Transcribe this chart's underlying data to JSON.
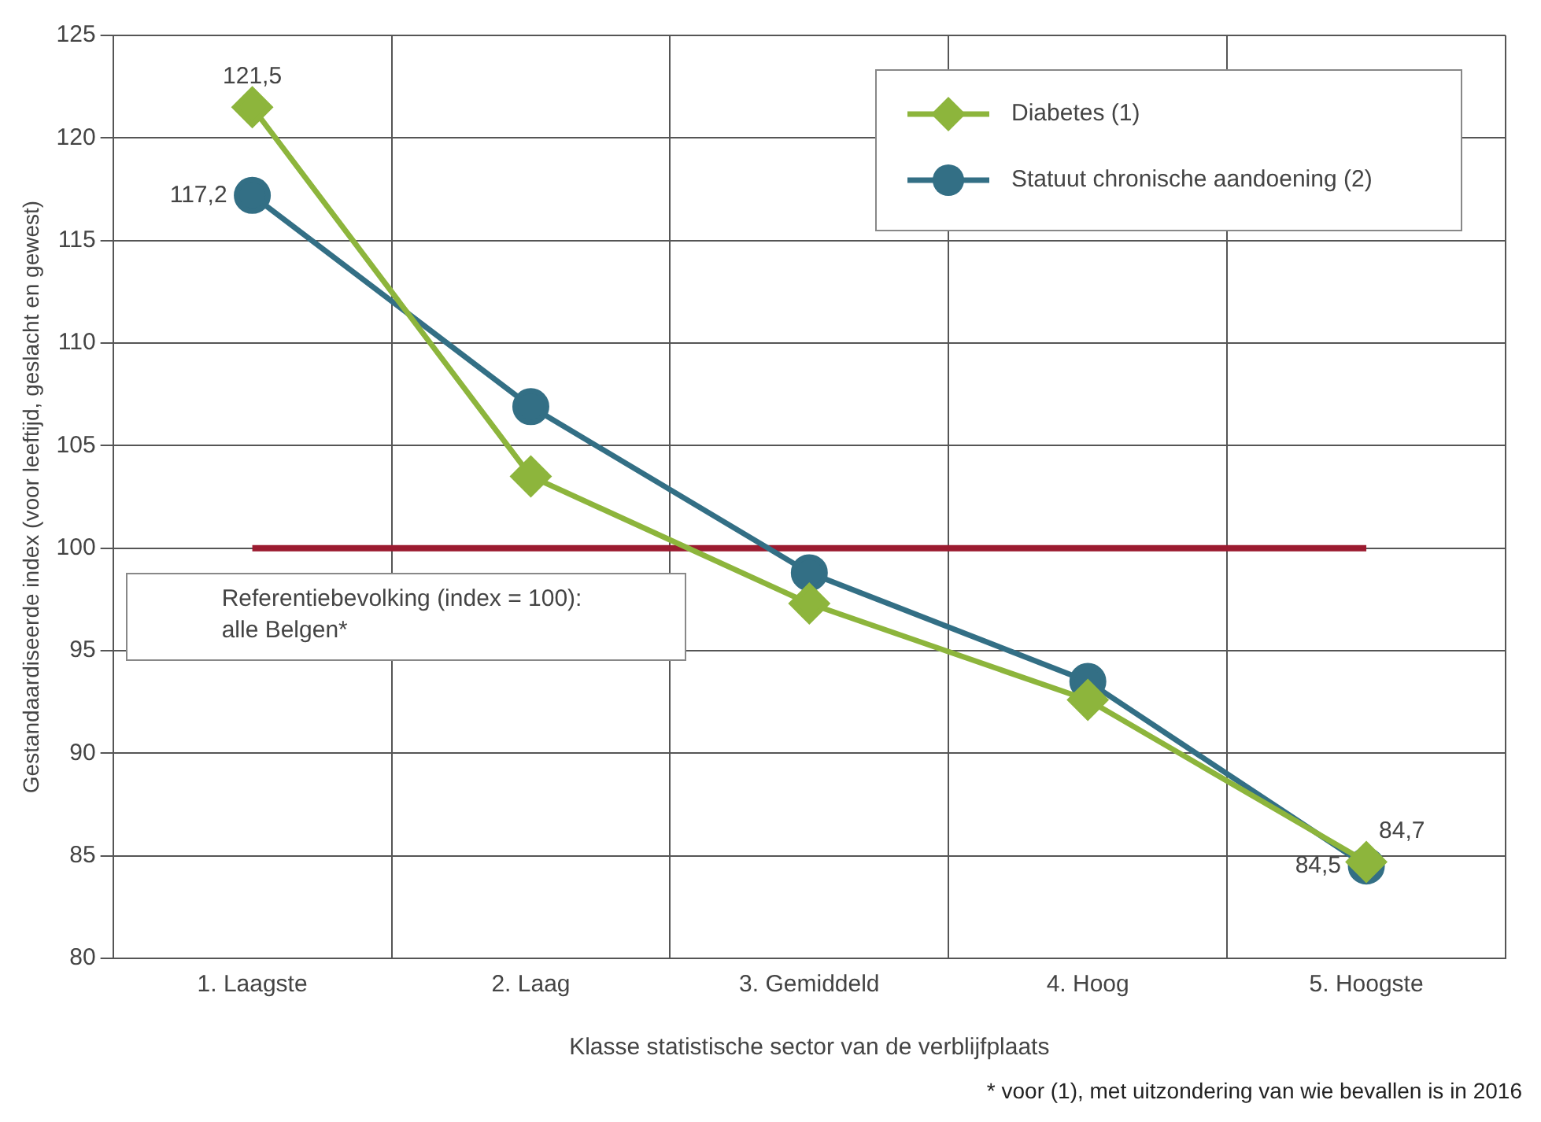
{
  "chart_data": {
    "type": "line",
    "xlabel": "Klasse statistische sector van de verblijfplaats",
    "ylabel": "Gestandaardiseerde index (voor leeftijd, geslacht en gewest)",
    "categories": [
      "1. Laagste",
      "2. Laag",
      "3. Gemiddeld",
      "4. Hoog",
      "5. Hoogste"
    ],
    "series": [
      {
        "name": "Diabetes (1)",
        "color": "#8db53c",
        "marker": "diamond",
        "values": [
          121.5,
          103.5,
          97.3,
          92.6,
          84.7
        ],
        "value_labels": [
          "121,5",
          null,
          null,
          null,
          "84,7"
        ]
      },
      {
        "name": "Statuut chronische aandoening (2)",
        "color": "#336f85",
        "marker": "circle",
        "values": [
          117.2,
          106.9,
          98.8,
          93.5,
          84.5
        ],
        "value_labels": [
          "117,2",
          null,
          null,
          null,
          "84,5"
        ]
      }
    ],
    "ylim": [
      80,
      125
    ],
    "yticks": [
      80,
      85,
      90,
      95,
      100,
      105,
      110,
      115,
      120,
      125
    ],
    "grid": true,
    "legend": "top right",
    "ref_lines": [
      {
        "axis": "y",
        "value": 100,
        "label": "Referentiebevolking (index = 100):\nalle Belgen*",
        "color": "#9b1b30"
      }
    ],
    "annotations": [
      "* voor (1), met uitzondering van wie bevallen is in 2016"
    ]
  }
}
